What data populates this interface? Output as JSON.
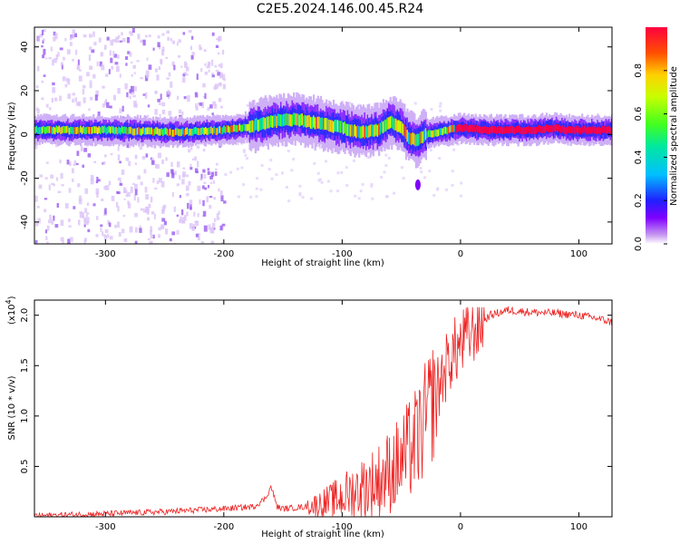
{
  "title": "C2E5.2024.146.00.45.R24",
  "chart_data": [
    {
      "type": "heatmap",
      "xlabel": "Height of straight line (km)",
      "ylabel": "Frequency (Hz)",
      "xlim": [
        -360,
        128
      ],
      "ylim": [
        -50,
        49
      ],
      "xticks": [
        -300,
        -200,
        -100,
        0,
        100
      ],
      "yticks": [
        -40,
        -20,
        0,
        20,
        40
      ],
      "ridge": {
        "x": [
          -360,
          -300,
          -240,
          -200,
          -175,
          -160,
          -140,
          -120,
          -100,
          -85,
          -70,
          -60,
          -50,
          -45,
          -38,
          -30,
          -20,
          -10,
          0,
          20,
          60,
          80,
          90,
          100,
          128
        ],
        "freq": [
          2,
          2,
          1,
          2,
          4,
          6,
          7,
          5,
          3,
          1,
          2,
          6,
          3,
          -1,
          -3,
          0,
          1,
          2,
          3,
          2,
          2,
          3,
          2,
          2,
          2
        ]
      },
      "isolated_spot": {
        "x": -36,
        "freq": -23
      },
      "colorbar": {
        "label": "Normalized spectral amplitude",
        "ticks": [
          0.0,
          0.2,
          0.4,
          0.6,
          0.8
        ],
        "range": [
          0,
          1
        ]
      }
    },
    {
      "type": "line",
      "xlabel": "Height of straight line (km)",
      "ylabel": "SNR (10 * v/v)",
      "exponent_label": "(x10",
      "exponent_power": "4",
      "exponent_close": ")",
      "xlim": [
        -360,
        128
      ],
      "ylim": [
        0,
        2.15
      ],
      "xticks": [
        -300,
        -200,
        -100,
        0,
        100
      ],
      "yticks": [
        0.5,
        1.0,
        1.5,
        2.0
      ],
      "series": [
        {
          "color": "#ee2222",
          "x": [
            -360,
            -300,
            -250,
            -200,
            -175,
            -165,
            -160,
            -155,
            -150,
            -130,
            -110,
            -90,
            -70,
            -50,
            -35,
            -25,
            -15,
            -8,
            0,
            10,
            25,
            40,
            60,
            80,
            100,
            115,
            128
          ],
          "y": [
            0.01,
            0.03,
            0.05,
            0.08,
            0.1,
            0.18,
            0.3,
            0.1,
            0.08,
            0.1,
            0.15,
            0.25,
            0.35,
            0.55,
            0.8,
            1.1,
            1.4,
            1.6,
            1.7,
            1.85,
            2.0,
            2.05,
            2.03,
            2.02,
            2.0,
            1.97,
            1.93
          ]
        }
      ]
    }
  ]
}
